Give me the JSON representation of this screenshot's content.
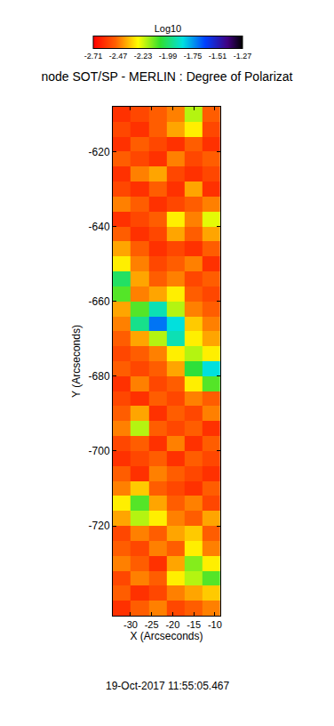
{
  "chart_data": {
    "type": "heatmap",
    "title": "node SOT/SP - MERLIN : Degree of Polarizat",
    "x_label": "X (Arcseconds)",
    "y_label": "Y (Arcseconds)",
    "annotation": "19-Oct-2017 11:55:05.467",
    "xlim": [
      -34.2,
      -8.7
    ],
    "ylim": [
      -744,
      -608
    ],
    "xticks": [
      -30,
      -25,
      -20,
      -15,
      -10
    ],
    "yticks": [
      -620,
      -640,
      -660,
      -680,
      -700,
      -720
    ],
    "x": [
      -32.1,
      -27.8,
      -23.6,
      -19.3,
      -15.1,
      -10.8
    ],
    "y": [
      -610,
      -614,
      -618,
      -622,
      -626,
      -630,
      -634,
      -638,
      -642,
      -646,
      -650,
      -654,
      -658,
      -662,
      -666,
      -670,
      -674,
      -678,
      -682,
      -686,
      -690,
      -694,
      -698,
      -702,
      -706,
      -710,
      -714,
      -718,
      -722,
      -726,
      -730,
      -734,
      -738,
      -742
    ],
    "cells": [
      [
        -2.6,
        -2.55,
        -2.5,
        -2.45,
        -2.2,
        -2.5
      ],
      [
        -2.55,
        -2.6,
        -2.5,
        -2.4,
        -2.3,
        -2.55
      ],
      [
        -2.6,
        -2.5,
        -2.55,
        -2.6,
        -2.5,
        -2.6
      ],
      [
        -2.5,
        -2.55,
        -2.6,
        -2.45,
        -2.55,
        -2.5
      ],
      [
        -2.6,
        -2.45,
        -2.4,
        -2.55,
        -2.6,
        -2.55
      ],
      [
        -2.55,
        -2.6,
        -2.5,
        -2.6,
        -2.4,
        -2.6
      ],
      [
        -2.45,
        -2.5,
        -2.6,
        -2.55,
        -2.5,
        -2.45
      ],
      [
        -2.6,
        -2.55,
        -2.5,
        -2.3,
        -2.45,
        -2.25
      ],
      [
        -2.5,
        -2.6,
        -2.55,
        -2.4,
        -2.5,
        -2.4
      ],
      [
        -2.4,
        -2.5,
        -2.6,
        -2.55,
        -2.6,
        -2.5
      ],
      [
        -2.3,
        -2.45,
        -2.55,
        -2.5,
        -2.45,
        -2.6
      ],
      [
        -2.0,
        -2.4,
        -2.5,
        -2.45,
        -2.55,
        -2.5
      ],
      [
        -2.1,
        -2.45,
        -2.4,
        -2.3,
        -2.5,
        -2.55
      ],
      [
        -2.4,
        -2.1,
        -1.9,
        -2.2,
        -2.45,
        -2.5
      ],
      [
        -2.45,
        -1.95,
        -1.7,
        -1.85,
        -2.35,
        -2.45
      ],
      [
        -2.5,
        -2.4,
        -2.2,
        -1.9,
        -2.3,
        -2.4
      ],
      [
        -2.55,
        -2.5,
        -2.45,
        -2.3,
        -2.2,
        -2.3
      ],
      [
        -2.5,
        -2.55,
        -2.5,
        -2.4,
        -2.05,
        -1.85
      ],
      [
        -2.6,
        -2.45,
        -2.55,
        -2.5,
        -2.3,
        -2.1
      ],
      [
        -2.55,
        -2.6,
        -2.5,
        -2.55,
        -2.45,
        -2.5
      ],
      [
        -2.5,
        -2.4,
        -2.6,
        -2.5,
        -2.55,
        -2.45
      ],
      [
        -2.45,
        -2.2,
        -2.5,
        -2.55,
        -2.5,
        -2.6
      ],
      [
        -2.55,
        -2.5,
        -2.6,
        -2.45,
        -2.6,
        -2.5
      ],
      [
        -2.6,
        -2.55,
        -2.5,
        -2.6,
        -2.5,
        -2.55
      ],
      [
        -2.5,
        -2.6,
        -2.45,
        -2.5,
        -2.55,
        -2.6
      ],
      [
        -2.45,
        -2.35,
        -2.5,
        -2.55,
        -2.6,
        -2.5
      ],
      [
        -2.3,
        -2.1,
        -2.4,
        -2.5,
        -2.45,
        -2.55
      ],
      [
        -2.4,
        -2.2,
        -2.3,
        -2.45,
        -2.5,
        -2.4
      ],
      [
        -2.55,
        -2.45,
        -2.5,
        -2.4,
        -2.35,
        -2.5
      ],
      [
        -2.5,
        -2.55,
        -2.45,
        -2.5,
        -2.3,
        -2.45
      ],
      [
        -2.45,
        -2.5,
        -2.6,
        -2.4,
        -2.15,
        -2.3
      ],
      [
        -2.55,
        -2.45,
        -2.5,
        -2.3,
        -2.2,
        -2.1
      ],
      [
        -2.5,
        -2.6,
        -2.55,
        -2.45,
        -2.4,
        -2.35
      ],
      [
        -2.6,
        -2.5,
        -2.45,
        -2.55,
        -2.5,
        -2.45
      ]
    ],
    "colorbar": {
      "title": "Log10",
      "range": [
        -2.71,
        -1.27
      ],
      "ticks": [
        -2.71,
        -2.47,
        -2.23,
        -1.99,
        -1.75,
        -1.51,
        -1.27
      ]
    }
  }
}
